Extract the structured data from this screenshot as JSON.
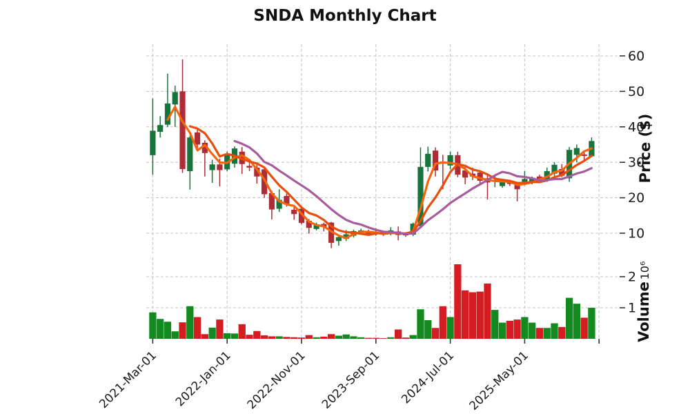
{
  "chart_data": {
    "type": "candlestick",
    "title": "SNDA Monthly Chart",
    "price_axis_label": "Price ($)",
    "volume_axis_label": "Volume",
    "volume_scale_label": "10⁶",
    "volume_unit": "millions of shares",
    "legend_position": "none",
    "grid": "dashed",
    "price_ticks": [
      10,
      20,
      30,
      40,
      50,
      60
    ],
    "volume_ticks": [
      1,
      2
    ],
    "price_ylim": [
      4.4,
      63.5
    ],
    "volume_ylim": [
      0,
      2.6
    ],
    "x_tick_months": [
      0,
      10,
      20,
      30,
      40,
      50,
      60
    ],
    "x_tick_labels": [
      "2021-Mar-01",
      "2022-Jan-01",
      "2022-Nov-01",
      "2023-Sep-01",
      "2024-Jul-01",
      "2025-May-01",
      ""
    ],
    "moving_averages": [
      {
        "name": "mav-3",
        "period": 3,
        "color": "#f4650e"
      },
      {
        "name": "mav-6",
        "period": 6,
        "color": "#e84d0b"
      },
      {
        "name": "mav-12",
        "period": 12,
        "color": "#a85a9e"
      }
    ],
    "colors": {
      "background": "#ffffff",
      "candle_up": "#17753c",
      "candle_down": "#ae2c35",
      "volume_up": "#128a1f",
      "volume_down": "#d41d22",
      "grid": "#c6c6c6",
      "tick_text": "#1a1a1a",
      "title_text": "#111111"
    },
    "ohlc": [
      {
        "date": "2021-03-01",
        "open": 32.0,
        "high": 48.0,
        "low": 26.5,
        "close": 38.9,
        "volume": 850000
      },
      {
        "date": "2021-04-01",
        "open": 38.6,
        "high": 43.0,
        "low": 37.0,
        "close": 40.5,
        "volume": 640000
      },
      {
        "date": "2021-05-01",
        "open": 40.6,
        "high": 55.0,
        "low": 39.9,
        "close": 46.6,
        "volume": 550000
      },
      {
        "date": "2021-06-01",
        "open": 46.3,
        "high": 51.6,
        "low": 40.0,
        "close": 49.8,
        "volume": 240000
      },
      {
        "date": "2021-07-01",
        "open": 50.0,
        "high": 59.0,
        "low": 27.0,
        "close": 28.1,
        "volume": 530000
      },
      {
        "date": "2021-08-01",
        "open": 27.5,
        "high": 37.5,
        "low": 22.3,
        "close": 37.0,
        "volume": 1050000
      },
      {
        "date": "2021-09-01",
        "open": 38.4,
        "high": 39.8,
        "low": 33.9,
        "close": 35.0,
        "volume": 700000
      },
      {
        "date": "2021-10-01",
        "open": 35.5,
        "high": 36.2,
        "low": 26.0,
        "close": 32.6,
        "volume": 150000
      },
      {
        "date": "2021-11-01",
        "open": 27.8,
        "high": 30.7,
        "low": 24.2,
        "close": 29.4,
        "volume": 360000
      },
      {
        "date": "2021-12-01",
        "open": 29.4,
        "high": 31.0,
        "low": 23.2,
        "close": 27.8,
        "volume": 620000
      },
      {
        "date": "2022-01-01",
        "open": 28.0,
        "high": 33.0,
        "low": 27.5,
        "close": 32.3,
        "volume": 180000
      },
      {
        "date": "2022-02-01",
        "open": 29.6,
        "high": 34.5,
        "low": 28.5,
        "close": 33.9,
        "volume": 170000
      },
      {
        "date": "2022-03-01",
        "open": 33.0,
        "high": 34.3,
        "low": 26.7,
        "close": 29.5,
        "volume": 470000
      },
      {
        "date": "2022-04-01",
        "open": 29.0,
        "high": 30.0,
        "low": 27.5,
        "close": 28.5,
        "volume": 130000
      },
      {
        "date": "2022-05-01",
        "open": 28.5,
        "high": 29.5,
        "low": 24.0,
        "close": 26.0,
        "volume": 250000
      },
      {
        "date": "2022-06-01",
        "open": 28.0,
        "high": 28.5,
        "low": 20.0,
        "close": 21.0,
        "volume": 110000
      },
      {
        "date": "2022-07-01",
        "open": 21.3,
        "high": 22.0,
        "low": 13.9,
        "close": 16.7,
        "volume": 80000
      },
      {
        "date": "2022-08-01",
        "open": 16.9,
        "high": 22.4,
        "low": 16.0,
        "close": 19.4,
        "volume": 80000
      },
      {
        "date": "2022-09-01",
        "open": 20.5,
        "high": 21.2,
        "low": 17.5,
        "close": 18.3,
        "volume": 60000
      },
      {
        "date": "2022-10-01",
        "open": 16.6,
        "high": 17.5,
        "low": 13.8,
        "close": 15.4,
        "volume": 50000
      },
      {
        "date": "2022-11-01",
        "open": 16.9,
        "high": 17.0,
        "low": 12.5,
        "close": 12.9,
        "volume": 40000
      },
      {
        "date": "2022-12-01",
        "open": 13.5,
        "high": 14.0,
        "low": 9.9,
        "close": 11.5,
        "volume": 120000
      },
      {
        "date": "2023-01-01",
        "open": 11.2,
        "high": 13.0,
        "low": 10.8,
        "close": 12.5,
        "volume": 50000
      },
      {
        "date": "2023-02-01",
        "open": 12.6,
        "high": 13.0,
        "low": 10.5,
        "close": 11.8,
        "volume": 70000
      },
      {
        "date": "2023-03-01",
        "open": 13.0,
        "high": 13.2,
        "low": 5.8,
        "close": 7.3,
        "volume": 150000
      },
      {
        "date": "2023-04-01",
        "open": 7.8,
        "high": 9.5,
        "low": 6.5,
        "close": 8.9,
        "volume": 100000
      },
      {
        "date": "2023-05-01",
        "open": 8.4,
        "high": 10.9,
        "low": 7.8,
        "close": 9.7,
        "volume": 140000
      },
      {
        "date": "2023-06-01",
        "open": 9.3,
        "high": 11.0,
        "low": 8.8,
        "close": 10.6,
        "volume": 80000
      },
      {
        "date": "2023-07-01",
        "open": 10.1,
        "high": 11.3,
        "low": 9.6,
        "close": 10.8,
        "volume": 50000
      },
      {
        "date": "2023-08-01",
        "open": 10.6,
        "high": 11.0,
        "low": 9.4,
        "close": 9.9,
        "volume": 30000
      },
      {
        "date": "2023-09-01",
        "open": 10.3,
        "high": 11.4,
        "low": 9.3,
        "close": 9.8,
        "volume": 30000
      },
      {
        "date": "2023-10-01",
        "open": 10.1,
        "high": 10.5,
        "low": 9.2,
        "close": 9.6,
        "volume": 20000
      },
      {
        "date": "2023-11-01",
        "open": 9.8,
        "high": 11.7,
        "low": 9.4,
        "close": 10.8,
        "volume": 50000
      },
      {
        "date": "2023-12-01",
        "open": 10.5,
        "high": 11.9,
        "low": 8.0,
        "close": 9.5,
        "volume": 300000
      },
      {
        "date": "2024-01-01",
        "open": 9.9,
        "high": 10.3,
        "low": 9.0,
        "close": 9.4,
        "volume": 40000
      },
      {
        "date": "2024-02-01",
        "open": 9.6,
        "high": 13.0,
        "low": 9.2,
        "close": 12.7,
        "volume": 120000
      },
      {
        "date": "2024-03-01",
        "open": 12.0,
        "high": 34.2,
        "low": 11.4,
        "close": 28.7,
        "volume": 950000
      },
      {
        "date": "2024-04-01",
        "open": 28.7,
        "high": 34.4,
        "low": 27.4,
        "close": 32.4,
        "volume": 600000
      },
      {
        "date": "2024-05-01",
        "open": 33.3,
        "high": 34.2,
        "low": 26.0,
        "close": 27.7,
        "volume": 350000
      },
      {
        "date": "2024-06-01",
        "open": 30.2,
        "high": 32.1,
        "low": 22.4,
        "close": 29.8,
        "volume": 1050000
      },
      {
        "date": "2024-07-01",
        "open": 29.1,
        "high": 33.0,
        "low": 28.0,
        "close": 32.0,
        "volume": 700000
      },
      {
        "date": "2024-08-01",
        "open": 32.0,
        "high": 33.0,
        "low": 25.8,
        "close": 26.5,
        "volume": 2400000
      },
      {
        "date": "2024-09-01",
        "open": 27.7,
        "high": 28.7,
        "low": 23.8,
        "close": 25.7,
        "volume": 1560000
      },
      {
        "date": "2024-10-01",
        "open": 26.8,
        "high": 28.5,
        "low": 25.0,
        "close": 26.0,
        "volume": 1500000
      },
      {
        "date": "2024-11-01",
        "open": 27.1,
        "high": 27.5,
        "low": 24.0,
        "close": 24.8,
        "volume": 1520000
      },
      {
        "date": "2024-12-01",
        "open": 25.5,
        "high": 26.5,
        "low": 19.5,
        "close": 24.3,
        "volume": 1780000
      },
      {
        "date": "2025-01-01",
        "open": 24.6,
        "high": 26.5,
        "low": 23.0,
        "close": 25.0,
        "volume": 930000
      },
      {
        "date": "2025-02-01",
        "open": 23.3,
        "high": 25.2,
        "low": 22.8,
        "close": 24.6,
        "volume": 520000
      },
      {
        "date": "2025-03-01",
        "open": 24.4,
        "high": 25.0,
        "low": 23.3,
        "close": 23.9,
        "volume": 580000
      },
      {
        "date": "2025-04-01",
        "open": 23.9,
        "high": 24.2,
        "low": 19.0,
        "close": 22.4,
        "volume": 620000
      },
      {
        "date": "2025-05-01",
        "open": 23.9,
        "high": 27.5,
        "low": 23.5,
        "close": 25.3,
        "volume": 700000
      },
      {
        "date": "2025-06-01",
        "open": 24.3,
        "high": 26.0,
        "low": 23.8,
        "close": 25.4,
        "volume": 520000
      },
      {
        "date": "2025-07-01",
        "open": 26.0,
        "high": 26.5,
        "low": 24.2,
        "close": 24.8,
        "volume": 350000
      },
      {
        "date": "2025-08-01",
        "open": 25.0,
        "high": 28.5,
        "low": 24.5,
        "close": 27.5,
        "volume": 350000
      },
      {
        "date": "2025-09-01",
        "open": 26.8,
        "high": 30.0,
        "low": 26.0,
        "close": 29.3,
        "volume": 500000
      },
      {
        "date": "2025-10-01",
        "open": 28.1,
        "high": 29.5,
        "low": 25.8,
        "close": 26.2,
        "volume": 380000
      },
      {
        "date": "2025-11-01",
        "open": 25.5,
        "high": 34.3,
        "low": 24.5,
        "close": 33.5,
        "volume": 1320000
      },
      {
        "date": "2025-12-01",
        "open": 32.1,
        "high": 35.0,
        "low": 30.0,
        "close": 34.0,
        "volume": 1130000
      },
      {
        "date": "2026-01-01",
        "open": 32.2,
        "high": 32.8,
        "low": 30.4,
        "close": 31.8,
        "volume": 680000
      },
      {
        "date": "2026-02-01",
        "open": 31.7,
        "high": 37.0,
        "low": 31.4,
        "close": 36.0,
        "volume": 1000000
      }
    ]
  }
}
